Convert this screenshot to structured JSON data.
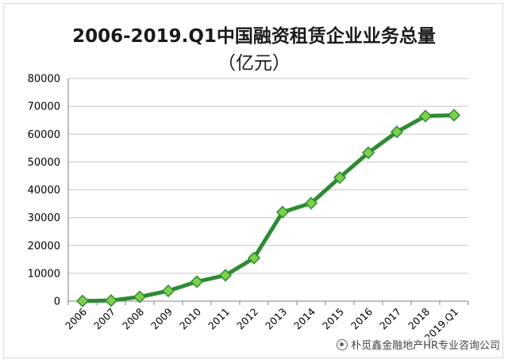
{
  "chart_data": {
    "type": "line",
    "title": "2006-2019.Q1中国融资租赁企业业务总量",
    "subtitle": "（亿元）",
    "categories": [
      "2006",
      "2007",
      "2008",
      "2009",
      "2010",
      "2011",
      "2012",
      "2013",
      "2014",
      "2015",
      "2016",
      "2017",
      "2018",
      "2019.Q1"
    ],
    "series": [
      {
        "values": [
          80,
          240,
          1550,
          3700,
          7000,
          9300,
          15500,
          32000,
          35200,
          44400,
          53300,
          60800,
          66500,
          66800
        ]
      }
    ],
    "ylim": [
      0,
      80000
    ],
    "yticks": [
      "0",
      "10000",
      "20000",
      "30000",
      "40000",
      "50000",
      "60000",
      "70000",
      "80000"
    ],
    "grid": true,
    "colors": {
      "line": "#2e8b34",
      "marker": "#7ed04a",
      "gridline": "#c8c8c8"
    }
  },
  "watermark": {
    "icon": "wechat-icon",
    "text": "朴觅鑫金融地产HR专业咨询公司"
  }
}
